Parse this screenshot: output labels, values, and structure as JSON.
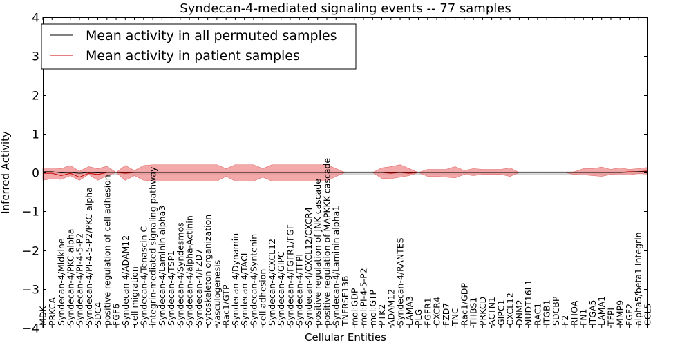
{
  "chart_data": {
    "type": "line",
    "title": "Syndecan-4-mediated signaling events -- 77 samples",
    "xlabel": "Cellular Entities",
    "ylabel": "Inferred Activity",
    "ylim": [
      -4,
      4
    ],
    "yticks": [
      -4,
      -3,
      -2,
      -1,
      0,
      1,
      2,
      3,
      4
    ],
    "ytick_labels": [
      "−4",
      "−3",
      "−2",
      "−1",
      "0",
      "1",
      "2",
      "3",
      "4"
    ],
    "grid": false,
    "legend_position": "top-left",
    "categories": [
      "MDK",
      "PRKCA",
      "Syndecan-4/Midkine",
      "Syndecan-4/PKC alpha",
      "Syndecan-4/PI-4-5-P2",
      "Syndecan-4/PI-4-5-P2/PKC alpha",
      "SDC4",
      "positive regulation of cell adhesion",
      "FGF6",
      "Syndecan-4/ADAM12",
      "cell migration",
      "Syndecan-4/Tenascin C",
      "integrin-mediated signaling pathway",
      "Syndecan-4/Laminin alpha3",
      "Syndecan-4/TSP1",
      "Syndecan-4/Syndesmos",
      "Syndecan-4/alpha-Actinin",
      "Syndecan-4/FZD7",
      "cytoskeleton organization",
      "vasculogenesis",
      "Rac1/GTP",
      "Syndecan-4/Dynamin",
      "Syndecan-4/TACI",
      "Syndecan-4/Syntenin",
      "cell adhesion",
      "Syndecan-4/CXCL12",
      "Syndecan-4/GIPC",
      "Syndecan-4/FGFR1/FGF",
      "Syndecan-4/TFPI",
      "Syndecan-4/CXCL12/CXCR4",
      "positive regulation of JNK cascade",
      "positive regulation of MAPKKK cascade",
      "Syndecan-4/Laminin alpha1",
      "TNFRSF13B",
      "mol:GDP",
      "mol:PI-4-5-P2",
      "mol:GTP",
      "PTK2",
      "ADAM12",
      "Syndecan-4/RANTES",
      "LAMA3",
      "PLG",
      "FGFR1",
      "CXCR4",
      "FZD7",
      "TNC",
      "Rac1/GDP",
      "THBS1",
      "PRKCD",
      "ACTN1",
      "GIPC1",
      "CXCL12",
      "DNM2",
      "NUDT16L1",
      "RAC1",
      "ITGB1",
      "SDCBP",
      "F2",
      "RHOA",
      "FN1",
      "ITGA5",
      "LAMA1",
      "TFPI",
      "MMP9",
      "FGF2",
      "alpha5/beta1 Integrin",
      "CCL5"
    ],
    "series": [
      {
        "name": "Mean activity in all permuted samples",
        "color": "#000000",
        "values": [
          0.02,
          0.02,
          -0.01,
          0.0,
          -0.02,
          0.0,
          -0.01,
          0.0,
          0.0,
          0.0,
          0.0,
          0.0,
          0.0,
          0.0,
          0.0,
          0.0,
          0.0,
          0.0,
          0.0,
          0.0,
          0.0,
          0.0,
          0.0,
          0.0,
          0.0,
          0.0,
          0.0,
          0.0,
          0.0,
          0.0,
          0.0,
          0.0,
          0.0,
          0.0,
          0.0,
          0.0,
          0.0,
          0.0,
          0.0,
          0.0,
          0.0,
          0.0,
          0.0,
          0.0,
          0.0,
          0.0,
          0.0,
          0.0,
          0.0,
          0.0,
          0.0,
          0.0,
          0.0,
          0.0,
          0.0,
          0.0,
          0.0,
          0.0,
          0.0,
          0.0,
          0.0,
          0.0,
          0.0,
          0.0,
          0.01,
          0.02,
          0.02
        ],
        "band_upper": [
          0.03,
          0.03,
          0.02,
          0.02,
          0.02,
          0.02,
          0.02,
          0.02,
          0.02,
          0.02,
          0.02,
          0.02,
          0.02,
          0.02,
          0.02,
          0.02,
          0.02,
          0.02,
          0.02,
          0.02,
          0.02,
          0.02,
          0.02,
          0.02,
          0.02,
          0.02,
          0.02,
          0.02,
          0.02,
          0.02,
          0.02,
          0.02,
          0.02,
          0.02,
          0.02,
          0.02,
          0.02,
          0.02,
          0.02,
          0.02,
          0.02,
          0.02,
          0.02,
          0.02,
          0.02,
          0.02,
          0.02,
          0.02,
          0.02,
          0.02,
          0.02,
          0.02,
          0.02,
          0.02,
          0.02,
          0.02,
          0.02,
          0.02,
          0.02,
          0.02,
          0.02,
          0.02,
          0.02,
          0.02,
          0.03,
          0.03,
          0.03
        ],
        "band_lower": [
          -0.03,
          -0.03,
          -0.05,
          -0.05,
          -0.05,
          -0.05,
          -0.05,
          -0.05,
          -0.05,
          -0.05,
          -0.05,
          -0.05,
          -0.05,
          -0.05,
          -0.05,
          -0.05,
          -0.05,
          -0.05,
          -0.05,
          -0.05,
          -0.05,
          -0.05,
          -0.05,
          -0.05,
          -0.05,
          -0.05,
          -0.05,
          -0.05,
          -0.05,
          -0.05,
          -0.05,
          -0.05,
          -0.05,
          -0.05,
          -0.05,
          -0.05,
          -0.05,
          -0.05,
          -0.05,
          -0.05,
          -0.05,
          -0.05,
          -0.05,
          -0.05,
          -0.05,
          -0.05,
          -0.05,
          -0.05,
          -0.05,
          -0.05,
          -0.05,
          -0.05,
          -0.05,
          -0.05,
          -0.05,
          -0.05,
          -0.05,
          -0.05,
          -0.05,
          -0.05,
          -0.05,
          -0.05,
          -0.05,
          -0.05,
          -0.03,
          -0.02,
          -0.02
        ]
      },
      {
        "name": "Mean activity in patient samples",
        "color": "#cc0000",
        "band_color": "#ef8c8c",
        "values": [
          -0.02,
          -0.02,
          -0.08,
          -0.02,
          -0.12,
          -0.02,
          -0.05,
          0.0,
          0.0,
          -0.02,
          0.0,
          0.0,
          0.0,
          0.0,
          0.0,
          0.0,
          0.0,
          0.0,
          0.0,
          0.0,
          0.0,
          0.0,
          0.0,
          0.0,
          0.0,
          0.0,
          0.0,
          0.0,
          0.0,
          0.0,
          0.0,
          0.0,
          0.0,
          0.0,
          0.0,
          0.0,
          0.0,
          0.0,
          -0.02,
          0.0,
          -0.02,
          0.0,
          0.0,
          0.0,
          0.0,
          0.0,
          0.0,
          0.0,
          0.0,
          0.0,
          0.0,
          0.0,
          0.0,
          0.0,
          0.0,
          0.0,
          0.0,
          0.0,
          0.0,
          0.0,
          0.0,
          0.0,
          0.0,
          0.0,
          0.02,
          0.02,
          0.04
        ],
        "band_upper": [
          0.12,
          0.12,
          0.1,
          0.18,
          0.03,
          0.15,
          0.1,
          0.16,
          0.0,
          0.18,
          0.05,
          0.18,
          0.2,
          0.2,
          0.2,
          0.2,
          0.2,
          0.2,
          0.2,
          0.2,
          0.1,
          0.2,
          0.2,
          0.2,
          0.1,
          0.2,
          0.2,
          0.2,
          0.2,
          0.2,
          0.2,
          0.2,
          0.1,
          0.0,
          0.0,
          0.0,
          0.0,
          0.12,
          0.15,
          0.2,
          0.1,
          0.0,
          0.08,
          0.08,
          0.08,
          0.15,
          0.05,
          0.1,
          0.08,
          0.08,
          0.08,
          0.12,
          0.0,
          0.0,
          0.0,
          0.0,
          0.0,
          0.0,
          0.02,
          0.1,
          0.1,
          0.14,
          0.08,
          0.12,
          0.08,
          0.1,
          0.13
        ],
        "band_lower": [
          -0.2,
          -0.16,
          -0.18,
          -0.08,
          -0.2,
          -0.05,
          -0.2,
          -0.08,
          0.0,
          -0.2,
          -0.08,
          -0.2,
          -0.22,
          -0.22,
          -0.22,
          -0.22,
          -0.22,
          -0.22,
          -0.22,
          -0.22,
          -0.1,
          -0.22,
          -0.22,
          -0.22,
          -0.12,
          -0.22,
          -0.22,
          -0.22,
          -0.22,
          -0.22,
          -0.22,
          -0.22,
          -0.1,
          0.0,
          0.0,
          0.0,
          0.0,
          -0.15,
          -0.16,
          -0.12,
          -0.08,
          0.0,
          -0.1,
          -0.1,
          -0.12,
          -0.14,
          -0.05,
          -0.08,
          -0.05,
          -0.05,
          -0.05,
          -0.1,
          0.0,
          0.0,
          0.0,
          0.0,
          0.0,
          0.0,
          -0.05,
          -0.06,
          -0.08,
          -0.1,
          -0.05,
          -0.06,
          -0.06,
          -0.03,
          -0.04
        ]
      }
    ]
  }
}
